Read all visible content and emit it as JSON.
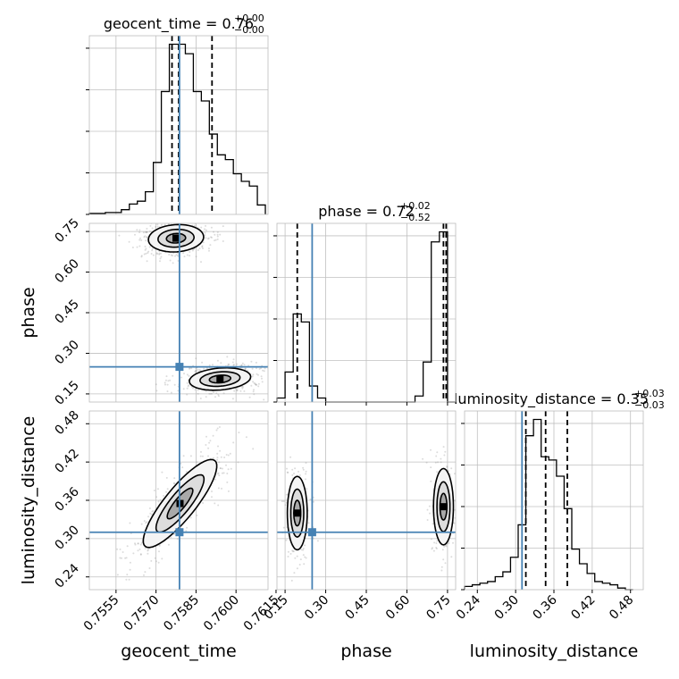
{
  "colors": {
    "truth": "#4682b4",
    "hist": "#000000",
    "quantile": "#000000",
    "grid": "#c0c0c0",
    "samples": "#9a9a9a"
  },
  "chart_data": {
    "type": "corner",
    "grid": true,
    "parameters": [
      {
        "key": "geocent_time",
        "axis_label": "geocent_time",
        "title_main": "geocent_time = 0.76",
        "title_sup": "+0.00",
        "title_sub": "−0.00",
        "range": [
          0.7545,
          0.7612
        ],
        "ticks": [
          "0.7555",
          "0.7570",
          "0.7585",
          "0.7600",
          "0.7615"
        ],
        "tick_values": [
          0.7555,
          0.757,
          0.7585,
          0.76,
          0.7615
        ],
        "truth": 0.75788,
        "quantiles": [
          0.7576,
          0.75785,
          0.7591
        ],
        "hist": {
          "edges": [
            0.7545,
            0.7548,
            0.7551,
            0.7554,
            0.7557,
            0.756,
            0.7563,
            0.7566,
            0.7569,
            0.7572,
            0.7575,
            0.7578,
            0.7581,
            0.7584,
            0.7587,
            0.759,
            0.7593,
            0.7596,
            0.7599,
            0.7602,
            0.7605,
            0.7608,
            0.7611
          ],
          "counts": [
            1,
            1,
            2,
            2,
            5,
            11,
            14,
            24,
            55,
            130,
            180,
            180,
            170,
            130,
            120,
            85,
            63,
            58,
            43,
            35,
            30,
            10
          ]
        }
      },
      {
        "key": "phase",
        "axis_label": "phase",
        "title_main": "phase = 0.72",
        "title_sup": "+0.02",
        "title_sub": "−0.52",
        "range": [
          0.12,
          0.78
        ],
        "ticks": [
          "0.15",
          "0.30",
          "0.45",
          "0.60",
          "0.75"
        ],
        "tick_values": [
          0.15,
          0.3,
          0.45,
          0.6,
          0.75
        ],
        "truth": 0.25,
        "quantiles": [
          0.195,
          0.735,
          0.745
        ],
        "hist": {
          "edges": [
            0.12,
            0.15,
            0.18,
            0.21,
            0.24,
            0.27,
            0.3,
            0.33,
            0.36,
            0.39,
            0.42,
            0.45,
            0.48,
            0.51,
            0.54,
            0.57,
            0.6,
            0.63,
            0.66,
            0.69,
            0.72,
            0.75,
            0.78
          ],
          "counts": [
            2,
            15,
            44,
            40,
            8,
            2,
            0,
            0,
            0,
            0,
            0,
            0,
            0,
            0,
            0,
            0,
            0,
            3,
            20,
            80,
            85,
            0
          ]
        }
      },
      {
        "key": "luminosity_distance",
        "axis_label": "luminosity_distance",
        "title_main": "luminosity_distance = 0.35",
        "title_sup": "+0.03",
        "title_sub": "−0.03",
        "range": [
          0.22,
          0.5
        ],
        "ticks": [
          "0.24",
          "0.30",
          "0.36",
          "0.42",
          "0.48"
        ],
        "tick_values": [
          0.24,
          0.3,
          0.36,
          0.42,
          0.48
        ],
        "truth": 0.31,
        "quantiles": [
          0.316,
          0.347,
          0.381
        ],
        "hist": {
          "edges": [
            0.22,
            0.232,
            0.244,
            0.256,
            0.268,
            0.28,
            0.292,
            0.304,
            0.316,
            0.328,
            0.34,
            0.352,
            0.364,
            0.376,
            0.388,
            0.4,
            0.412,
            0.424,
            0.436,
            0.448,
            0.46,
            0.472,
            0.484
          ],
          "counts": [
            2,
            3,
            4,
            5,
            8,
            11,
            20,
            40,
            95,
            105,
            82,
            80,
            70,
            50,
            25,
            16,
            10,
            5,
            4,
            3,
            1,
            0
          ]
        }
      }
    ],
    "pairs": [
      {
        "x": "geocent_time",
        "y": "phase",
        "description_modes": [
          {
            "center": [
              0.75775,
              0.725
            ],
            "sx": 0.00045,
            "sy": 0.022,
            "rho": 0.1,
            "weight": 1.0
          },
          {
            "center": [
              0.7594,
              0.205
            ],
            "sx": 0.0005,
            "sy": 0.018,
            "rho": 0.2,
            "weight": 1.0
          }
        ]
      },
      {
        "x": "geocent_time",
        "y": "luminosity_distance",
        "description_modes": [
          {
            "center": [
              0.7579,
              0.355
            ],
            "sx": 0.0006,
            "sy": 0.03,
            "rho": 0.85,
            "weight": 1.0
          }
        ]
      },
      {
        "x": "phase",
        "y": "luminosity_distance",
        "description_modes": [
          {
            "center": [
              0.195,
              0.34
            ],
            "sx": 0.016,
            "sy": 0.025,
            "rho": 0.0,
            "weight": 0.5
          },
          {
            "center": [
              0.735,
              0.35
            ],
            "sx": 0.016,
            "sy": 0.026,
            "rho": 0.0,
            "weight": 0.5
          }
        ]
      }
    ]
  }
}
